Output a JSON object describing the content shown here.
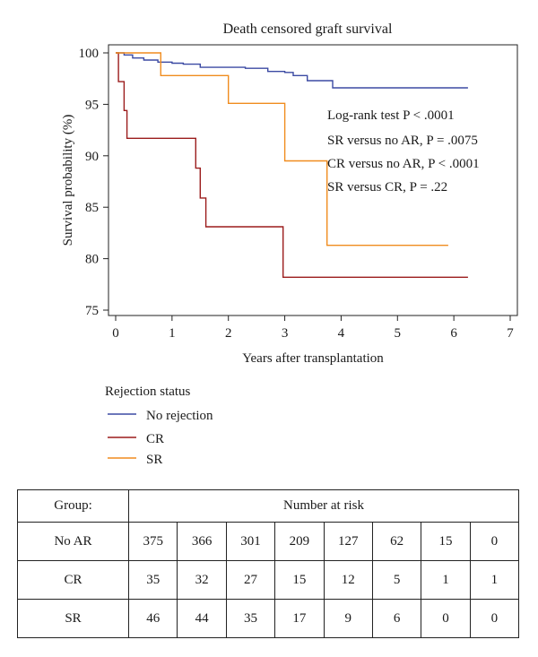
{
  "chart_data": {
    "type": "line",
    "step": true,
    "title": "Death censored graft survival",
    "xlabel": "Years after transplantation",
    "ylabel": "Survival probability (%)",
    "xlim": [
      0,
      7
    ],
    "ylim": [
      75,
      100
    ],
    "xticks": [
      0,
      1,
      2,
      3,
      4,
      5,
      6,
      7
    ],
    "yticks": [
      75,
      80,
      85,
      90,
      95,
      100
    ],
    "grid": false,
    "series": [
      {
        "name": "No rejection",
        "color": "#3b4aa3",
        "points": [
          [
            0,
            100
          ],
          [
            0.15,
            99.8
          ],
          [
            0.3,
            99.5
          ],
          [
            0.5,
            99.3
          ],
          [
            0.75,
            99.1
          ],
          [
            1.0,
            99.0
          ],
          [
            1.2,
            98.9
          ],
          [
            1.5,
            98.6
          ],
          [
            2.0,
            98.6
          ],
          [
            2.3,
            98.5
          ],
          [
            2.7,
            98.2
          ],
          [
            3.0,
            98.1
          ],
          [
            3.15,
            97.8
          ],
          [
            3.4,
            97.3
          ],
          [
            3.85,
            96.6
          ],
          [
            6.25,
            96.6
          ]
        ]
      },
      {
        "name": "CR",
        "color": "#9b1c1c",
        "points": [
          [
            0,
            100
          ],
          [
            0.05,
            97.2
          ],
          [
            0.15,
            94.4
          ],
          [
            0.2,
            91.7
          ],
          [
            1.4,
            91.7
          ],
          [
            1.42,
            88.8
          ],
          [
            1.5,
            85.9
          ],
          [
            1.6,
            83.1
          ],
          [
            2.95,
            83.1
          ],
          [
            2.97,
            78.2
          ],
          [
            6.25,
            78.2
          ]
        ]
      },
      {
        "name": "SR",
        "color": "#f08c1e",
        "points": [
          [
            0,
            100
          ],
          [
            0.78,
            100
          ],
          [
            0.8,
            97.8
          ],
          [
            1.97,
            97.8
          ],
          [
            2.0,
            95.1
          ],
          [
            2.97,
            95.1
          ],
          [
            3.0,
            89.5
          ],
          [
            3.7,
            89.5
          ],
          [
            3.75,
            81.3
          ],
          [
            5.9,
            81.3
          ]
        ]
      }
    ],
    "annotations": [
      "Log-rank test P < .0001",
      "SR versus no AR, P = .0075",
      "CR versus no AR, P < .0001",
      "SR versus CR, P = .22"
    ],
    "legend": {
      "title": "Rejection status",
      "placement": "below-left",
      "entries": [
        "No rejection",
        "CR",
        "SR"
      ]
    }
  },
  "risk_table": {
    "group_header": "Group:",
    "risk_header": "Number at risk",
    "rows": [
      {
        "group": "No AR",
        "values": [
          "375",
          "366",
          "301",
          "209",
          "127",
          "62",
          "15",
          "0"
        ]
      },
      {
        "group": "CR",
        "values": [
          "35",
          "32",
          "27",
          "15",
          "12",
          "5",
          "1",
          "1"
        ]
      },
      {
        "group": "SR",
        "values": [
          "46",
          "44",
          "35",
          "17",
          "9",
          "6",
          "0",
          "0"
        ]
      }
    ]
  }
}
